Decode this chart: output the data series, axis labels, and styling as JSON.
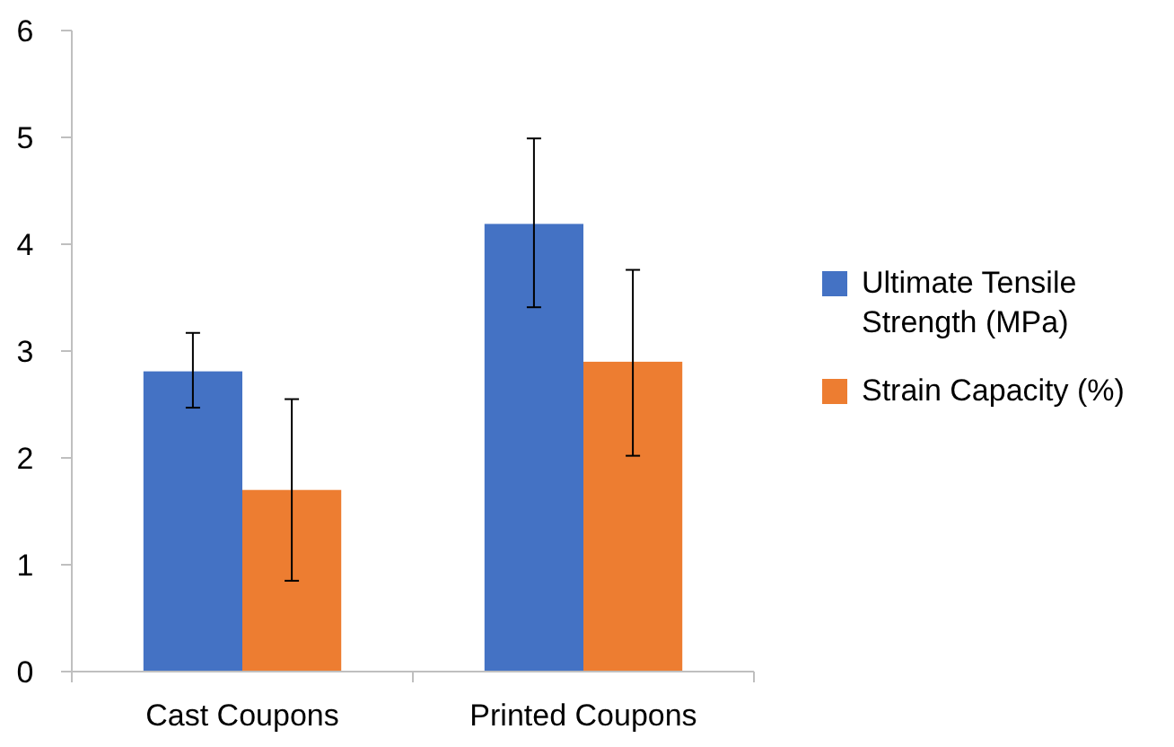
{
  "chart_data": {
    "type": "bar",
    "categories": [
      "Cast Coupons",
      "Printed Coupons"
    ],
    "series": [
      {
        "name": "Ultimate Tensile Strength (MPa)",
        "color": "#4472c4",
        "values": [
          2.81,
          4.19
        ],
        "errors": [
          [
            2.47,
            3.17
          ],
          [
            3.41,
            4.99
          ]
        ]
      },
      {
        "name": "Strain Capacity (%)",
        "color": "#ed7d31",
        "values": [
          1.7,
          2.9
        ],
        "errors": [
          [
            0.85,
            2.55
          ],
          [
            2.02,
            3.76
          ]
        ]
      }
    ],
    "ylim": [
      0,
      6
    ],
    "yticks": [
      0,
      1,
      2,
      3,
      4,
      5,
      6
    ],
    "grid": false,
    "legend": "right"
  }
}
